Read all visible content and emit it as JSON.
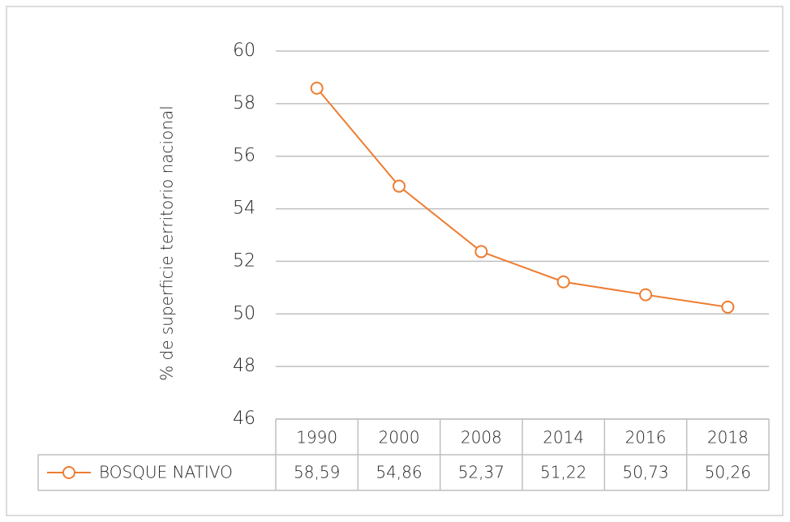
{
  "chart_data": {
    "type": "line",
    "y_label": "% de superficie territorio nacional",
    "categories": [
      "1990",
      "2000",
      "2008",
      "2014",
      "2016",
      "2018"
    ],
    "series": [
      {
        "name": "BOSQUE NATIVO",
        "color": "#ed7d31",
        "values": [
          58.59,
          54.86,
          52.37,
          51.22,
          50.73,
          50.26
        ],
        "value_labels": [
          "58,59",
          "54,86",
          "52,37",
          "51,22",
          "50,73",
          "50,26"
        ]
      }
    ],
    "ylim": [
      46,
      60
    ],
    "yticks": [
      46,
      48,
      50,
      52,
      54,
      56,
      58,
      60
    ],
    "grid": true
  }
}
